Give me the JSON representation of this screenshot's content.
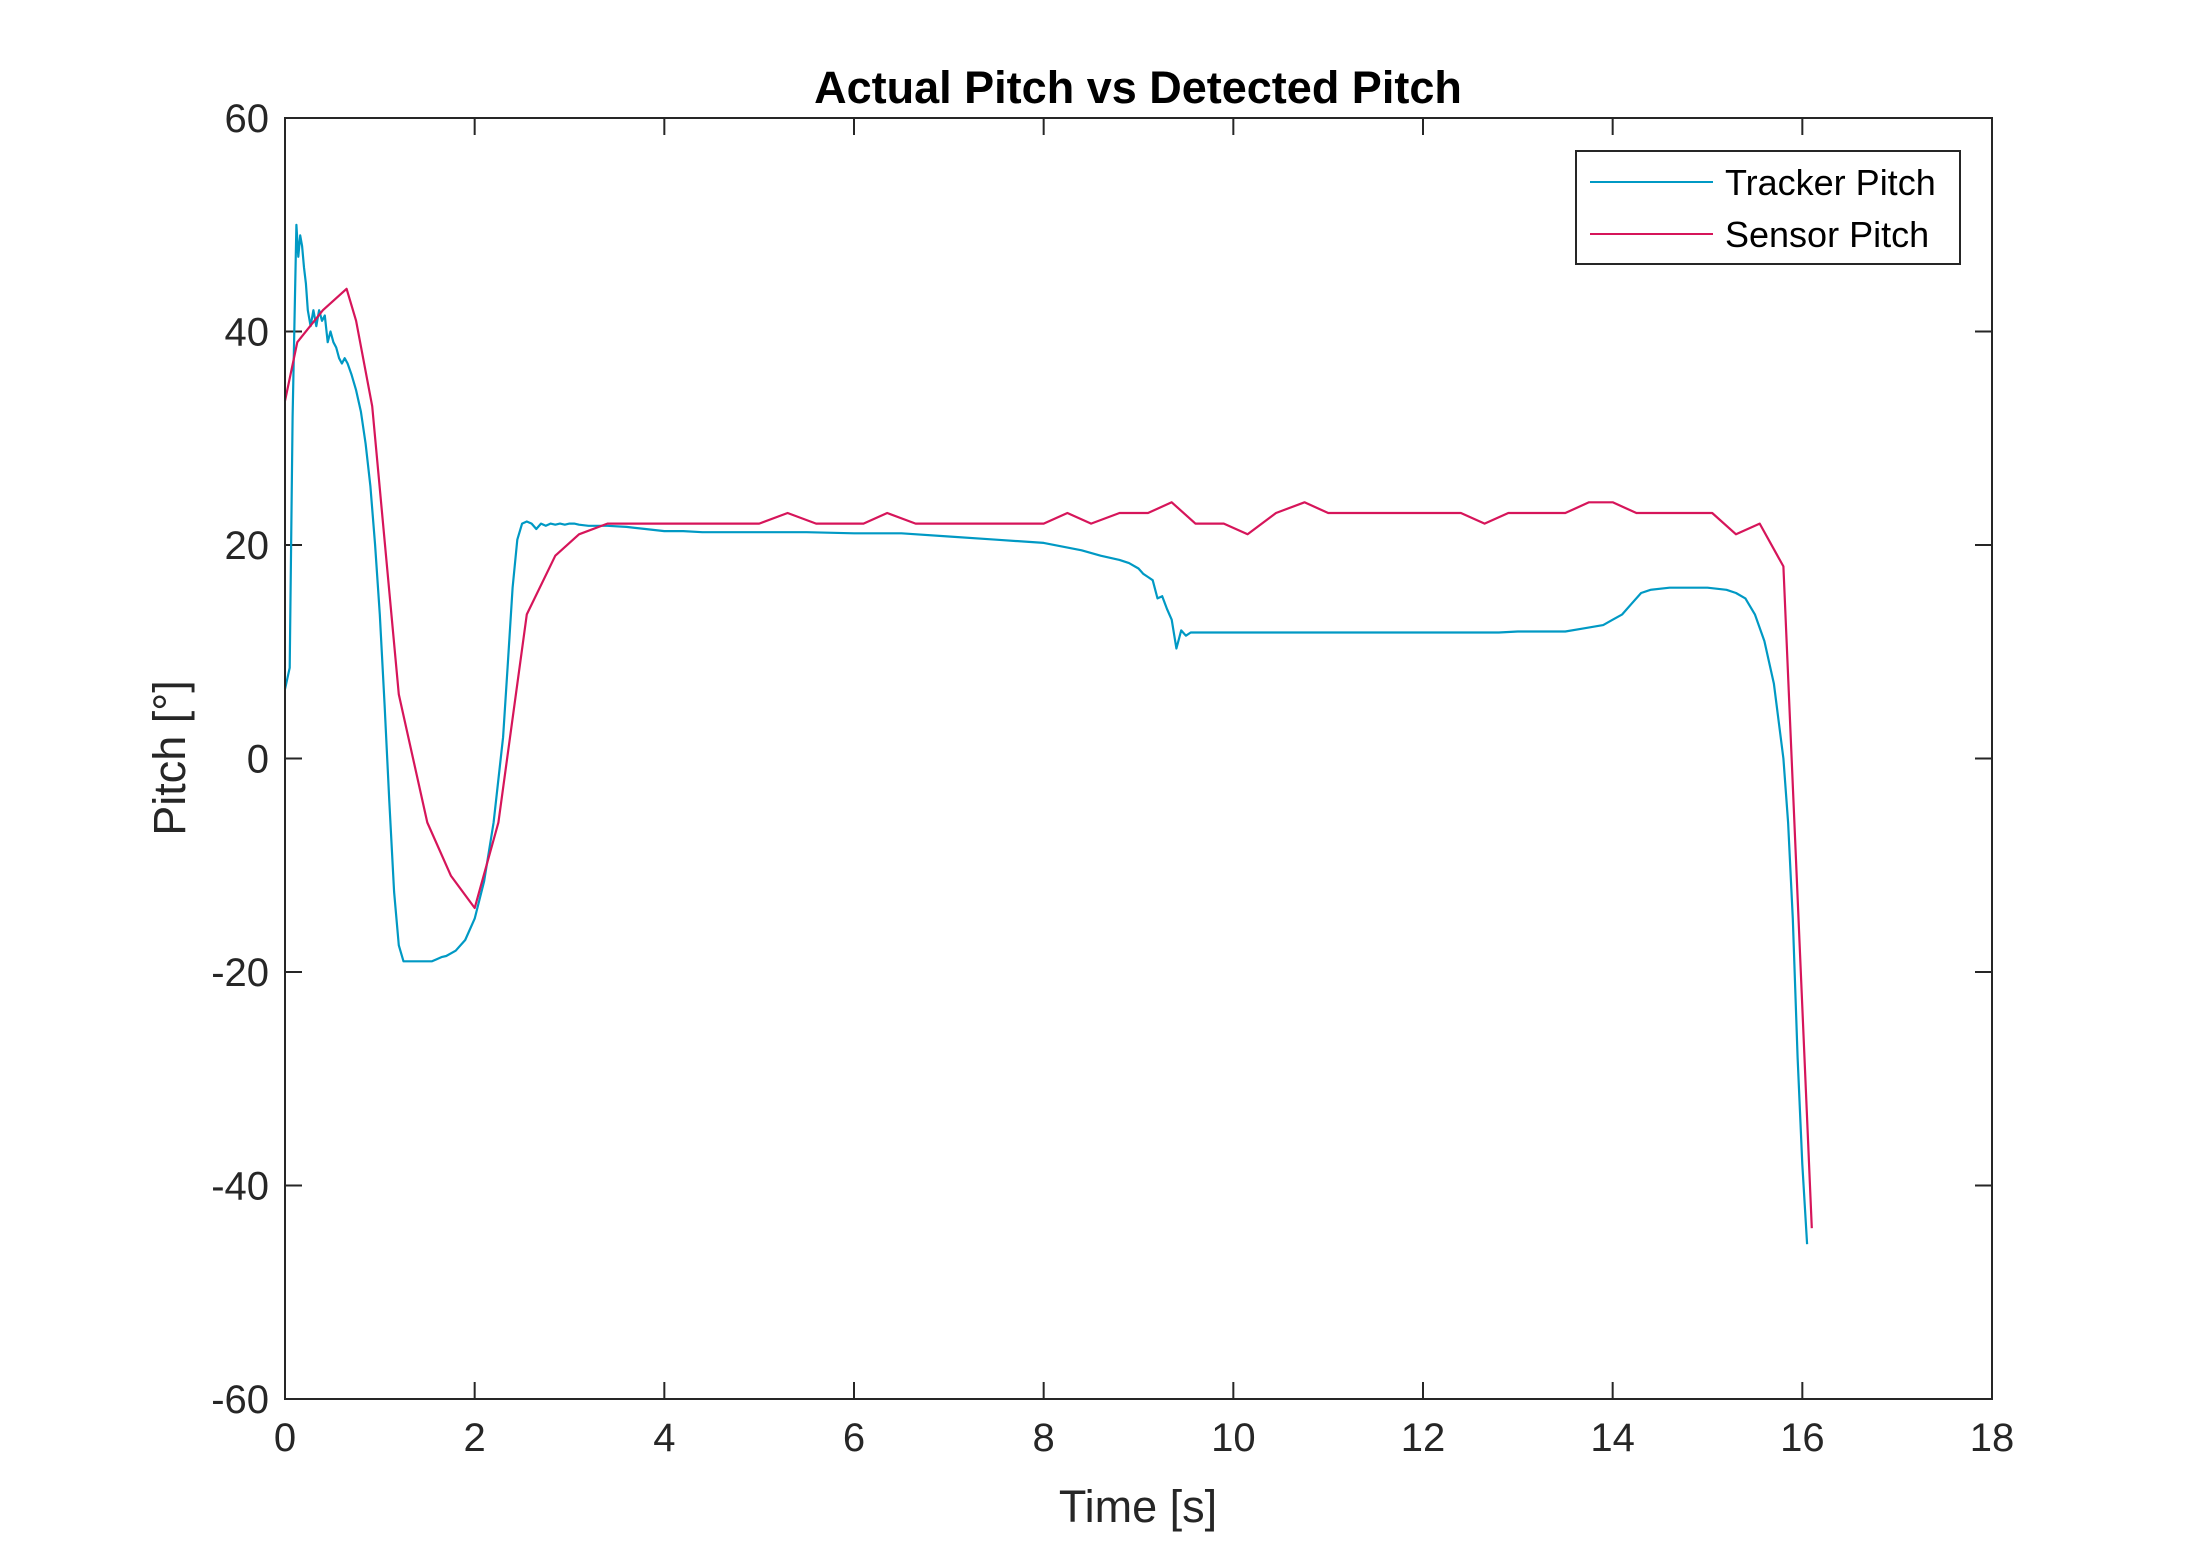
{
  "chart_data": {
    "type": "line",
    "title": "Actual Pitch vs Detected Pitch",
    "xlabel": "Time [s]",
    "ylabel": "Pitch [°]",
    "xlim": [
      0,
      18
    ],
    "ylim": [
      -60,
      60
    ],
    "xticks": [
      0,
      2,
      4,
      6,
      8,
      10,
      12,
      14,
      16,
      18
    ],
    "yticks": [
      -60,
      -40,
      -20,
      0,
      20,
      40,
      60
    ],
    "grid": false,
    "legend_position": "top-right",
    "series": [
      {
        "name": "Tracker Pitch",
        "color": "#0099c4",
        "x": [
          0,
          0.05,
          0.08,
          0.1,
          0.12,
          0.14,
          0.16,
          0.18,
          0.2,
          0.22,
          0.24,
          0.27,
          0.3,
          0.33,
          0.36,
          0.39,
          0.42,
          0.45,
          0.48,
          0.51,
          0.54,
          0.57,
          0.6,
          0.63,
          0.66,
          0.7,
          0.75,
          0.8,
          0.85,
          0.9,
          0.95,
          1.0,
          1.05,
          1.1,
          1.15,
          1.2,
          1.25,
          1.3,
          1.35,
          1.4,
          1.45,
          1.5,
          1.55,
          1.6,
          1.65,
          1.7,
          1.8,
          1.9,
          2.0,
          2.1,
          2.2,
          2.3,
          2.35,
          2.4,
          2.45,
          2.5,
          2.55,
          2.6,
          2.65,
          2.7,
          2.75,
          2.8,
          2.85,
          2.9,
          2.95,
          3.0,
          3.05,
          3.1,
          3.2,
          3.4,
          3.6,
          3.8,
          4.0,
          4.2,
          4.4,
          4.6,
          4.8,
          5.0,
          5.5,
          6.0,
          6.5,
          7.0,
          7.5,
          8.0,
          8.4,
          8.6,
          8.8,
          8.9,
          9.0,
          9.05,
          9.1,
          9.15,
          9.2,
          9.25,
          9.3,
          9.35,
          9.4,
          9.45,
          9.5,
          9.55,
          9.6,
          10.0,
          11.0,
          12.0,
          12.8,
          13.0,
          13.5,
          13.7,
          13.9,
          14.0,
          14.1,
          14.2,
          14.3,
          14.4,
          14.6,
          15.0,
          15.2,
          15.3,
          15.4,
          15.5,
          15.6,
          15.7,
          15.8,
          15.85,
          15.9,
          15.95,
          16.0,
          16.05
        ],
        "values": [
          6.5,
          8.5,
          32,
          41,
          50,
          47,
          49,
          48,
          46,
          44.5,
          42,
          40.5,
          42,
          40.5,
          42,
          41,
          41.5,
          39,
          40,
          39,
          38.5,
          37.5,
          37,
          37.5,
          37,
          36,
          34.5,
          32.5,
          29.5,
          25.5,
          20,
          13.5,
          5,
          -4,
          -12.5,
          -17.5,
          -19,
          -19,
          -19,
          -19,
          -19,
          -19,
          -19,
          -18.8,
          -18.6,
          -18.5,
          -18,
          -17,
          -15,
          -11.5,
          -6,
          2,
          9,
          16,
          20.5,
          22,
          22.2,
          22,
          21.5,
          22,
          21.8,
          22,
          21.9,
          22,
          21.9,
          22,
          22,
          21.9,
          21.8,
          21.8,
          21.7,
          21.5,
          21.3,
          21.3,
          21.2,
          21.2,
          21.2,
          21.2,
          21.2,
          21.1,
          21.1,
          20.8,
          20.5,
          20.2,
          19.5,
          19,
          18.6,
          18.3,
          17.8,
          17.3,
          17,
          16.7,
          15,
          15.2,
          14,
          13,
          10.3,
          12,
          11.5,
          11.8,
          11.8,
          11.8,
          11.8,
          11.8,
          11.8,
          11.9,
          11.9,
          12.2,
          12.5,
          13,
          13.5,
          14.5,
          15.5,
          15.8,
          16,
          16,
          15.8,
          15.5,
          15,
          13.5,
          11,
          7,
          0,
          -6,
          -15,
          -28,
          -38,
          -45.5
        ]
      },
      {
        "name": "Sensor Pitch",
        "color": "#d6155a",
        "x": [
          0,
          0.13,
          0.4,
          0.65,
          0.75,
          0.92,
          1.2,
          1.5,
          1.75,
          2.0,
          2.25,
          2.55,
          2.85,
          3.1,
          3.4,
          5.0,
          5.3,
          5.6,
          6.1,
          6.35,
          6.65,
          8.0,
          8.25,
          8.5,
          8.8,
          9.1,
          9.35,
          9.6,
          9.9,
          10.15,
          10.45,
          10.75,
          11.0,
          12.4,
          12.65,
          12.9,
          13.5,
          13.75,
          14.0,
          14.25,
          14.5,
          15.05,
          15.3,
          15.55,
          15.8,
          16.1
        ],
        "values": [
          33.5,
          39,
          42,
          44,
          41,
          33,
          6,
          -6,
          -11,
          -14,
          -6,
          13.5,
          19,
          21,
          22,
          22,
          23,
          22,
          22,
          23,
          22,
          22,
          23,
          22,
          23,
          23,
          24,
          22,
          22,
          21,
          23,
          24,
          23,
          23,
          22,
          23,
          23,
          24,
          24,
          23,
          23,
          23,
          21,
          22,
          18,
          -44
        ]
      }
    ]
  }
}
